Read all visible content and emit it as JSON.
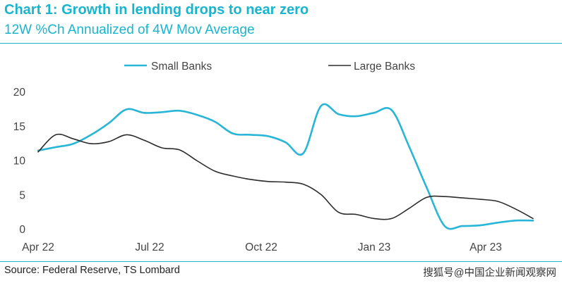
{
  "header": {
    "title": "Chart 1: Growth in lending drops to near zero",
    "subtitle": "12W %Ch Annualized of 4W Mov Average"
  },
  "footer": {
    "source": "Source: Federal Reserve, TS Lombard",
    "watermark": "搜狐号@中国企业新闻观察网"
  },
  "colors": {
    "accent": "#19b5cf",
    "small_banks": "#29b6d6",
    "large_banks": "#2b2b2b"
  },
  "chart_data": {
    "type": "line",
    "title": "Chart 1: Growth in lending drops to near zero",
    "subtitle": "12W %Ch Annualized of 4W Mov Average",
    "xlabel": "",
    "ylabel": "",
    "x_tick_labels": [
      "Apr 22",
      "Jul 22",
      "Oct 22",
      "Jan 23",
      "Apr 23"
    ],
    "y_tick_labels": [
      "0",
      "5",
      "10",
      "15",
      "20"
    ],
    "ylim": [
      0,
      20
    ],
    "grid": false,
    "legend_position": "top",
    "x_months": [
      0,
      0.5,
      1,
      1.5,
      2,
      2.5,
      3,
      3.5,
      4,
      4.5,
      5,
      5.5,
      6,
      6.5,
      7,
      7.5,
      8,
      8.5,
      9,
      9.5,
      10,
      10.5,
      11,
      11.5,
      12,
      12.5,
      13,
      13.5,
      14
    ],
    "series": [
      {
        "name": "Small Banks",
        "color": "#29b6d6",
        "values": [
          11.5,
          12.0,
          12.5,
          13.8,
          15.5,
          17.5,
          17.0,
          17.1,
          17.3,
          16.7,
          15.7,
          14.0,
          13.8,
          13.6,
          12.7,
          11.1,
          18.0,
          16.8,
          16.5,
          17.0,
          17.4,
          12.0,
          6.0,
          0.5,
          0.5,
          0.6,
          1.0,
          1.3,
          1.3
        ]
      },
      {
        "name": "Large Banks",
        "color": "#2b2b2b",
        "values": [
          11.3,
          13.8,
          13.2,
          12.5,
          12.8,
          13.8,
          13.0,
          11.9,
          11.6,
          10.0,
          8.5,
          7.8,
          7.3,
          7.0,
          6.9,
          6.6,
          5.1,
          2.5,
          2.2,
          1.6,
          1.6,
          3.1,
          4.7,
          4.8,
          4.6,
          4.4,
          4.1,
          3.0,
          1.6
        ]
      }
    ]
  }
}
